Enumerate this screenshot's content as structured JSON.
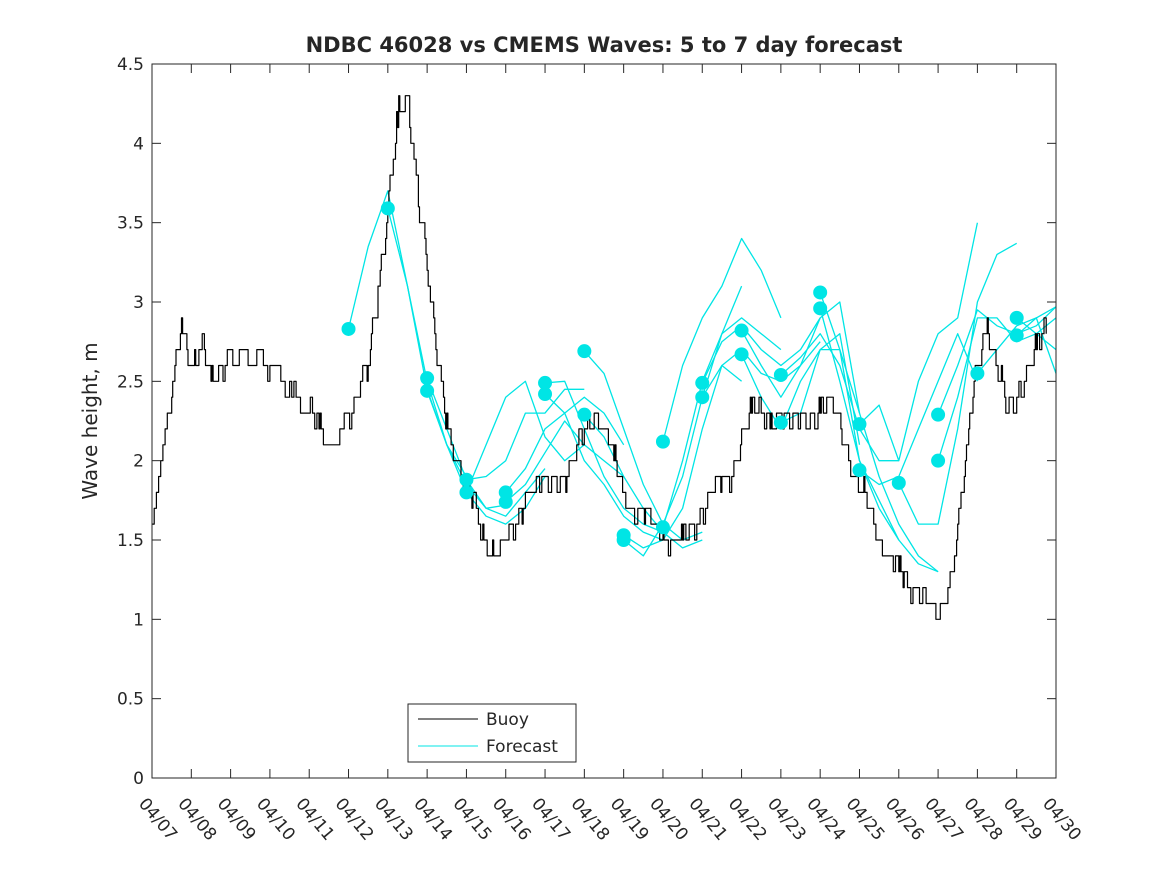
{
  "chart_data": {
    "type": "line",
    "title": "NDBC 46028 vs CMEMS Waves: 5 to 7 day forecast",
    "xlabel": "",
    "ylabel": "Wave height, m",
    "xlim": [
      "04/07",
      "04/30"
    ],
    "ylim": [
      0,
      4.5
    ],
    "x_tick_labels": [
      "04/07",
      "04/08",
      "04/09",
      "04/10",
      "04/11",
      "04/12",
      "04/13",
      "04/14",
      "04/15",
      "04/16",
      "04/17",
      "04/18",
      "04/19",
      "04/20",
      "04/21",
      "04/22",
      "04/23",
      "04/24",
      "04/25",
      "04/26",
      "04/27",
      "04/28",
      "04/29",
      "04/30"
    ],
    "y_tick_labels": [
      "0",
      "0.5",
      "1",
      "1.5",
      "2",
      "2.5",
      "3",
      "3.5",
      "4",
      "4.5"
    ],
    "y_ticks": [
      0,
      0.5,
      1,
      1.5,
      2,
      2.5,
      3,
      3.5,
      4,
      4.5
    ],
    "grid": false,
    "legend_position": "bottom-left",
    "colors": {
      "buoy": "#000000",
      "forecast": "#00e5e5"
    },
    "series": [
      {
        "name": "Buoy",
        "kind": "observation",
        "x": [
          "04/07 00:00",
          "04/07 12:00",
          "04/07 18:00",
          "04/08 00:00",
          "04/08 06:00",
          "04/08 12:00",
          "04/08 18:00",
          "04/09 00:00",
          "04/09 12:00",
          "04/10 00:00",
          "04/10 12:00",
          "04/11 00:00",
          "04/11 06:00",
          "04/11 12:00",
          "04/12 00:00",
          "04/12 06:00",
          "04/12 12:00",
          "04/12 18:00",
          "04/13 00:00",
          "04/13 06:00",
          "04/13 12:00",
          "04/13 18:00",
          "04/14 00:00",
          "04/14 06:00",
          "04/14 12:00",
          "04/14 18:00",
          "04/15 00:00",
          "04/15 06:00",
          "04/15 12:00",
          "04/15 18:00",
          "04/16 00:00",
          "04/16 06:00",
          "04/16 12:00",
          "04/16 18:00",
          "04/17 00:00",
          "04/17 06:00",
          "04/17 12:00",
          "04/17 18:00",
          "04/18 00:00",
          "04/18 06:00",
          "04/18 12:00",
          "04/18 18:00",
          "04/19 00:00",
          "04/19 06:00",
          "04/19 12:00",
          "04/19 18:00",
          "04/20 00:00",
          "04/20 06:00",
          "04/20 12:00",
          "04/20 18:00",
          "04/21 00:00",
          "04/21 06:00",
          "04/21 12:00",
          "04/21 18:00",
          "04/22 00:00",
          "04/22 06:00",
          "04/22 12:00",
          "04/22 18:00",
          "04/23 00:00",
          "04/23 06:00",
          "04/23 12:00",
          "04/23 18:00",
          "04/24 00:00",
          "04/24 06:00",
          "04/24 12:00",
          "04/24 18:00",
          "04/25 00:00",
          "04/25 06:00",
          "04/25 12:00",
          "04/25 18:00",
          "04/26 00:00",
          "04/26 06:00",
          "04/26 12:00",
          "04/26 18:00",
          "04/27 00:00",
          "04/27 06:00",
          "04/27 12:00",
          "04/27 18:00",
          "04/28 00:00",
          "04/28 06:00",
          "04/28 12:00",
          "04/28 18:00",
          "04/29 00:00",
          "04/29 06:00",
          "04/29 12:00",
          "04/29 18:00"
        ],
        "values": [
          1.6,
          2.4,
          2.9,
          2.6,
          2.7,
          2.5,
          2.6,
          2.7,
          2.6,
          2.6,
          2.5,
          2.3,
          2.2,
          2.1,
          2.3,
          2.4,
          2.6,
          3.1,
          3.6,
          4.1,
          4.3,
          3.8,
          3.2,
          2.6,
          2.3,
          2.0,
          1.8,
          1.7,
          1.5,
          1.4,
          1.45,
          1.6,
          1.8,
          1.8,
          1.85,
          1.9,
          1.9,
          2.0,
          2.2,
          2.3,
          2.2,
          2.0,
          1.8,
          1.7,
          1.65,
          1.6,
          1.55,
          1.5,
          1.5,
          1.55,
          1.7,
          1.8,
          1.85,
          1.9,
          2.2,
          2.3,
          2.3,
          2.25,
          2.3,
          2.2,
          2.3,
          2.3,
          2.3,
          2.35,
          2.3,
          2.0,
          1.8,
          1.7,
          1.5,
          1.4,
          1.3,
          1.2,
          1.2,
          1.1,
          1.0,
          1.15,
          1.6,
          2.1,
          2.6,
          2.9,
          2.6,
          2.3,
          2.4,
          2.6,
          2.7,
          2.8
        ]
      },
      {
        "kind": "forecast",
        "x": [
          "04/12 00:00",
          "04/12 12:00",
          "04/13 00:00",
          "04/13 12:00",
          "04/14 00:00",
          "04/14 12:00",
          "04/15 00:00"
        ],
        "values": [
          2.83,
          3.35,
          3.7,
          3.1,
          2.45,
          2.1,
          1.9
        ]
      },
      {
        "kind": "forecast",
        "x": [
          "04/13 00:00",
          "04/13 12:00",
          "04/14 00:00",
          "04/14 12:00",
          "04/15 00:00",
          "04/15 12:00",
          "04/16 00:00"
        ],
        "values": [
          3.59,
          3.1,
          2.5,
          2.1,
          1.85,
          1.7,
          1.72
        ]
      },
      {
        "kind": "forecast",
        "x": [
          "04/14 00:00",
          "04/14 12:00",
          "04/15 00:00",
          "04/15 12:00",
          "04/16 00:00",
          "04/16 12:00",
          "04/17 00:00"
        ],
        "values": [
          2.52,
          2.2,
          1.88,
          1.7,
          1.65,
          1.8,
          1.95
        ]
      },
      {
        "kind": "forecast",
        "x": [
          "04/14 00:00",
          "04/14 12:00",
          "04/15 00:00",
          "04/15 12:00",
          "04/16 00:00",
          "04/16 12:00",
          "04/17 00:00"
        ],
        "values": [
          2.44,
          2.1,
          1.8,
          1.65,
          1.6,
          1.7,
          1.9
        ]
      },
      {
        "kind": "forecast",
        "x": [
          "04/15 00:00",
          "04/15 12:00",
          "04/16 00:00",
          "04/16 12:00",
          "04/17 00:00",
          "04/17 12:00",
          "04/18 00:00"
        ],
        "values": [
          1.88,
          1.9,
          2.0,
          2.3,
          2.3,
          2.45,
          2.45
        ]
      },
      {
        "kind": "forecast",
        "x": [
          "04/15 00:00",
          "04/15 12:00",
          "04/16 00:00",
          "04/16 12:00",
          "04/17 00:00",
          "04/17 12:00",
          "04/18 00:00"
        ],
        "values": [
          1.8,
          2.1,
          2.4,
          2.5,
          2.15,
          2.0,
          2.1
        ]
      },
      {
        "kind": "forecast",
        "x": [
          "04/16 00:00",
          "04/16 12:00",
          "04/17 00:00",
          "04/17 12:00",
          "04/18 00:00",
          "04/18 12:00",
          "04/19 00:00"
        ],
        "values": [
          1.8,
          1.95,
          2.2,
          2.3,
          2.4,
          2.3,
          2.1
        ]
      },
      {
        "kind": "forecast",
        "x": [
          "04/16 00:00",
          "04/16 12:00",
          "04/17 00:00",
          "04/17 12:00",
          "04/18 00:00",
          "04/18 12:00",
          "04/19 00:00"
        ],
        "values": [
          1.74,
          1.85,
          2.05,
          2.25,
          2.1,
          2.0,
          1.9
        ]
      },
      {
        "kind": "forecast",
        "x": [
          "04/17 00:00",
          "04/17 12:00",
          "04/18 00:00",
          "04/18 12:00",
          "04/19 00:00",
          "04/19 12:00",
          "04/20 00:00"
        ],
        "values": [
          2.49,
          2.5,
          2.2,
          1.9,
          1.7,
          1.6,
          1.55
        ]
      },
      {
        "kind": "forecast",
        "x": [
          "04/17 00:00",
          "04/17 12:00",
          "04/18 00:00",
          "04/18 12:00",
          "04/19 00:00",
          "04/19 12:00",
          "04/20 00:00"
        ],
        "values": [
          2.42,
          2.3,
          2.0,
          1.85,
          1.65,
          1.55,
          1.5
        ]
      },
      {
        "kind": "forecast",
        "x": [
          "04/18 00:00",
          "04/18 12:00",
          "04/19 00:00",
          "04/19 12:00",
          "04/20 00:00",
          "04/20 12:00",
          "04/21 00:00"
        ],
        "values": [
          2.69,
          2.55,
          2.2,
          1.85,
          1.6,
          1.5,
          1.55
        ]
      },
      {
        "kind": "forecast",
        "x": [
          "04/18 00:00",
          "04/18 12:00",
          "04/19 00:00",
          "04/19 12:00",
          "04/20 00:00",
          "04/20 12:00",
          "04/21 00:00"
        ],
        "values": [
          2.29,
          2.15,
          1.9,
          1.7,
          1.55,
          1.45,
          1.5
        ]
      },
      {
        "kind": "forecast",
        "x": [
          "04/19 00:00",
          "04/19 12:00",
          "04/20 00:00",
          "04/20 12:00",
          "04/21 00:00",
          "04/21 12:00",
          "04/22 00:00"
        ],
        "values": [
          1.53,
          1.45,
          1.5,
          1.7,
          2.2,
          2.6,
          2.5
        ]
      },
      {
        "kind": "forecast",
        "x": [
          "04/19 00:00",
          "04/19 12:00",
          "04/20 00:00",
          "04/20 12:00",
          "04/21 00:00",
          "04/21 12:00",
          "04/22 00:00"
        ],
        "values": [
          1.5,
          1.4,
          1.6,
          1.9,
          2.4,
          2.8,
          3.1
        ]
      },
      {
        "kind": "forecast",
        "x": [
          "04/20 00:00",
          "04/20 12:00",
          "04/21 00:00",
          "04/21 12:00",
          "04/22 00:00",
          "04/22 12:00",
          "04/23 00:00"
        ],
        "values": [
          2.12,
          2.6,
          2.9,
          3.1,
          3.4,
          3.2,
          2.9
        ]
      },
      {
        "kind": "forecast",
        "x": [
          "04/20 00:00",
          "04/20 12:00",
          "04/21 00:00",
          "04/21 12:00",
          "04/22 00:00",
          "04/22 12:00",
          "04/23 00:00"
        ],
        "values": [
          1.58,
          2.0,
          2.5,
          2.8,
          2.9,
          2.8,
          2.7
        ]
      },
      {
        "kind": "forecast",
        "x": [
          "04/21 00:00",
          "04/21 12:00",
          "04/22 00:00",
          "04/22 12:00",
          "04/23 00:00",
          "04/23 12:00",
          "04/24 00:00"
        ],
        "values": [
          2.49,
          2.75,
          2.85,
          2.7,
          2.6,
          2.7,
          2.9
        ]
      },
      {
        "kind": "forecast",
        "x": [
          "04/21 00:00",
          "04/21 12:00",
          "04/22 00:00",
          "04/22 12:00",
          "04/23 00:00",
          "04/23 12:00",
          "04/24 00:00"
        ],
        "values": [
          2.4,
          2.6,
          2.7,
          2.55,
          2.5,
          2.6,
          2.75
        ]
      },
      {
        "kind": "forecast",
        "x": [
          "04/22 00:00",
          "04/22 12:00",
          "04/23 00:00",
          "04/23 12:00",
          "04/24 00:00",
          "04/24 12:00",
          "04/25 00:00"
        ],
        "values": [
          2.82,
          2.6,
          2.4,
          2.6,
          2.9,
          3.0,
          2.3
        ]
      },
      {
        "kind": "forecast",
        "x": [
          "04/22 00:00",
          "04/22 12:00",
          "04/23 00:00",
          "04/23 12:00",
          "04/24 00:00",
          "04/24 12:00",
          "04/25 00:00"
        ],
        "values": [
          2.67,
          2.4,
          2.2,
          2.5,
          2.7,
          2.8,
          2.1
        ]
      },
      {
        "kind": "forecast",
        "x": [
          "04/23 00:00",
          "04/23 12:00",
          "04/24 00:00",
          "04/24 12:00",
          "04/25 00:00",
          "04/25 12:00",
          "04/26 00:00"
        ],
        "values": [
          2.54,
          2.65,
          2.8,
          2.6,
          2.2,
          2.0,
          2.0
        ]
      },
      {
        "kind": "forecast",
        "x": [
          "04/23 00:00",
          "04/23 12:00",
          "04/24 00:00",
          "04/24 12:00",
          "04/25 00:00",
          "04/25 12:00",
          "04/26 00:00"
        ],
        "values": [
          2.24,
          2.3,
          2.7,
          2.7,
          2.0,
          1.7,
          1.5
        ]
      },
      {
        "kind": "forecast",
        "x": [
          "04/24 00:00",
          "04/24 12:00",
          "04/25 00:00",
          "04/25 12:00",
          "04/26 00:00",
          "04/26 12:00",
          "04/27 00:00"
        ],
        "values": [
          3.06,
          2.7,
          2.3,
          1.9,
          1.6,
          1.4,
          1.3
        ]
      },
      {
        "kind": "forecast",
        "x": [
          "04/24 00:00",
          "04/24 12:00",
          "04/25 00:00",
          "04/25 12:00",
          "04/26 00:00",
          "04/26 12:00",
          "04/27 00:00"
        ],
        "values": [
          2.96,
          2.5,
          2.0,
          1.75,
          1.5,
          1.35,
          1.3
        ]
      },
      {
        "kind": "forecast",
        "x": [
          "04/25 00:00",
          "04/25 12:00",
          "04/26 00:00",
          "04/26 12:00",
          "04/27 00:00",
          "04/27 12:00",
          "04/28 00:00"
        ],
        "values": [
          2.23,
          2.35,
          2.0,
          2.5,
          2.8,
          2.9,
          3.5
        ]
      },
      {
        "kind": "forecast",
        "x": [
          "04/25 00:00",
          "04/25 12:00",
          "04/26 00:00",
          "04/26 12:00",
          "04/27 00:00",
          "04/27 12:00",
          "04/28 00:00"
        ],
        "values": [
          1.94,
          1.85,
          1.9,
          2.2,
          2.5,
          2.8,
          2.5
        ]
      },
      {
        "kind": "forecast",
        "x": [
          "04/26 00:00",
          "04/26 12:00",
          "04/27 00:00",
          "04/27 12:00",
          "04/28 00:00",
          "04/28 12:00",
          "04/29 00:00"
        ],
        "values": [
          1.86,
          1.6,
          1.6,
          2.2,
          3.0,
          3.3,
          3.37
        ]
      },
      {
        "kind": "forecast",
        "x": [
          "04/27 00:00",
          "04/27 12:00",
          "04/28 00:00",
          "04/28 12:00",
          "04/29 00:00",
          "04/29 12:00",
          "04/30 00:00"
        ],
        "values": [
          2.29,
          2.6,
          2.95,
          2.85,
          2.8,
          2.85,
          2.97
        ]
      },
      {
        "kind": "forecast",
        "x": [
          "04/27 00:00",
          "04/27 12:00",
          "04/28 00:00",
          "04/28 12:00",
          "04/29 00:00",
          "04/29 12:00",
          "04/30 00:00"
        ],
        "values": [
          2.0,
          2.4,
          2.9,
          2.9,
          2.75,
          2.8,
          2.9
        ]
      },
      {
        "kind": "forecast",
        "x": [
          "04/28 00:00",
          "04/28 12:00",
          "04/29 00:00",
          "04/29 12:00",
          "04/30 00:00"
        ],
        "values": [
          2.55,
          2.7,
          2.85,
          2.9,
          2.55
        ]
      },
      {
        "kind": "forecast",
        "x": [
          "04/29 00:00",
          "04/29 12:00",
          "04/30 00:00"
        ],
        "values": [
          2.9,
          2.8,
          2.7
        ]
      },
      {
        "kind": "forecast",
        "x": [
          "04/29 00:00",
          "04/29 12:00",
          "04/30 00:00"
        ],
        "values": [
          2.79,
          2.9,
          2.97
        ]
      }
    ],
    "forecast_markers": {
      "x": [
        "04/12 00:00",
        "04/13 00:00",
        "04/14 00:00",
        "04/14 00:00",
        "04/15 00:00",
        "04/15 00:00",
        "04/16 00:00",
        "04/16 00:00",
        "04/17 00:00",
        "04/17 00:00",
        "04/18 00:00",
        "04/18 00:00",
        "04/19 00:00",
        "04/19 00:00",
        "04/20 00:00",
        "04/20 00:00",
        "04/21 00:00",
        "04/21 00:00",
        "04/22 00:00",
        "04/22 00:00",
        "04/23 00:00",
        "04/23 00:00",
        "04/24 00:00",
        "04/24 00:00",
        "04/25 00:00",
        "04/25 00:00",
        "04/26 00:00",
        "04/27 00:00",
        "04/27 00:00",
        "04/28 00:00",
        "04/29 00:00",
        "04/29 00:00"
      ],
      "values": [
        2.83,
        3.59,
        2.52,
        2.44,
        1.88,
        1.8,
        1.8,
        1.74,
        2.49,
        2.42,
        2.69,
        2.29,
        1.53,
        1.5,
        2.12,
        1.58,
        2.49,
        2.4,
        2.82,
        2.67,
        2.54,
        2.24,
        3.06,
        2.96,
        2.23,
        1.94,
        1.86,
        2.29,
        2.0,
        2.55,
        2.9,
        2.79
      ]
    },
    "legend": [
      {
        "label": "Buoy",
        "color_key": "buoy"
      },
      {
        "label": "Forecast",
        "color_key": "forecast"
      }
    ]
  }
}
